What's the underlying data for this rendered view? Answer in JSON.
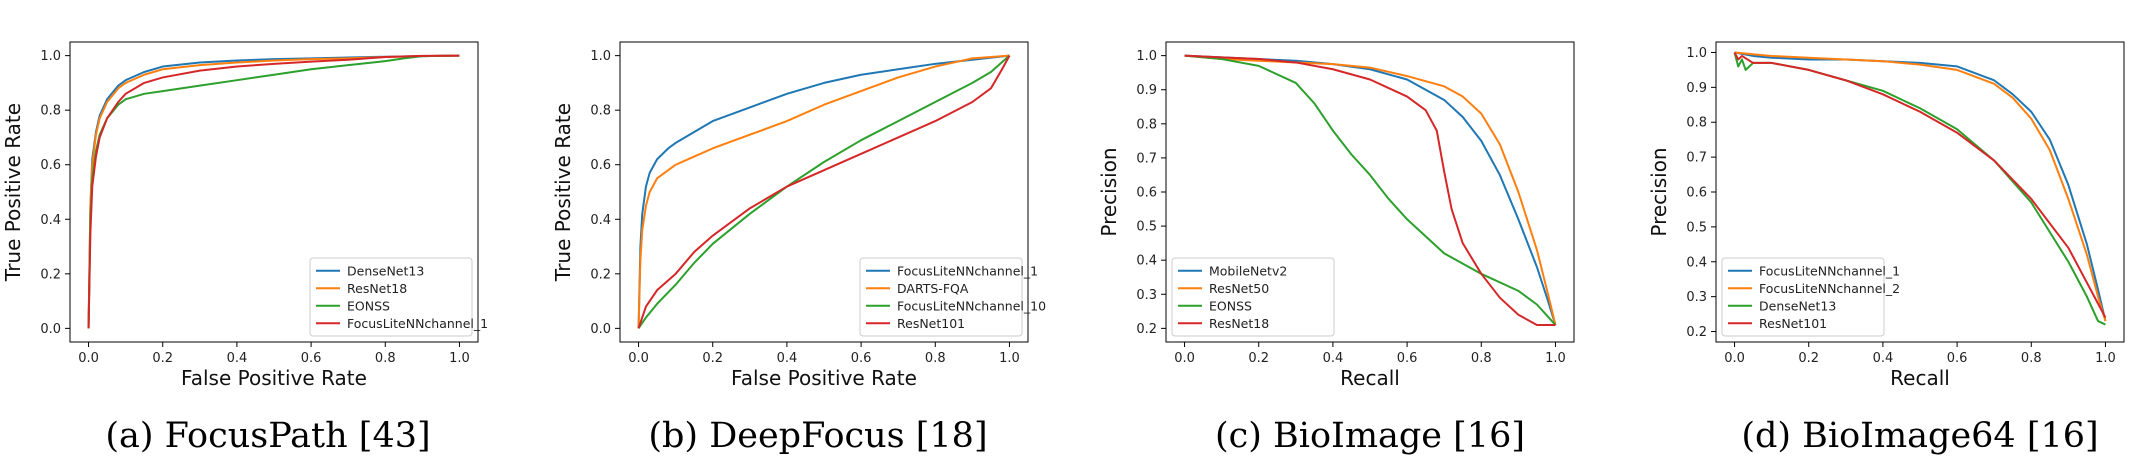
{
  "chart_data": [
    {
      "type": "line",
      "caption": "(a) FocusPath [43]",
      "xlabel": "False Positive Rate",
      "ylabel": "True Positive Rate",
      "xlim": [
        -0.05,
        1.05
      ],
      "ylim": [
        -0.05,
        1.05
      ],
      "xticks": [
        0.0,
        0.2,
        0.4,
        0.6,
        0.8,
        1.0
      ],
      "yticks": [
        0.0,
        0.2,
        0.4,
        0.6,
        0.8,
        1.0
      ],
      "grid": false,
      "legend_position": "lower-right",
      "series": [
        {
          "name": "DenseNet13",
          "color": "#1f77b4",
          "x": [
            0,
            0.005,
            0.01,
            0.02,
            0.03,
            0.05,
            0.08,
            0.1,
            0.15,
            0.2,
            0.3,
            0.4,
            0.5,
            0.6,
            0.7,
            0.8,
            0.9,
            1.0
          ],
          "y": [
            0,
            0.45,
            0.62,
            0.72,
            0.78,
            0.84,
            0.89,
            0.91,
            0.94,
            0.96,
            0.975,
            0.982,
            0.987,
            0.99,
            0.993,
            0.996,
            0.998,
            1.0
          ]
        },
        {
          "name": "ResNet18",
          "color": "#ff7f0e",
          "x": [
            0,
            0.005,
            0.01,
            0.02,
            0.03,
            0.05,
            0.08,
            0.1,
            0.15,
            0.2,
            0.3,
            0.4,
            0.5,
            0.6,
            0.7,
            0.8,
            0.9,
            1.0
          ],
          "y": [
            0,
            0.45,
            0.6,
            0.71,
            0.77,
            0.83,
            0.88,
            0.9,
            0.93,
            0.95,
            0.965,
            0.975,
            0.982,
            0.987,
            0.99,
            0.995,
            0.998,
            1.0
          ]
        },
        {
          "name": "EONSS",
          "color": "#2ca02c",
          "x": [
            0,
            0.005,
            0.01,
            0.02,
            0.03,
            0.05,
            0.08,
            0.1,
            0.15,
            0.2,
            0.3,
            0.4,
            0.5,
            0.6,
            0.7,
            0.8,
            0.85,
            0.9,
            1.0
          ],
          "y": [
            0,
            0.4,
            0.55,
            0.65,
            0.71,
            0.77,
            0.82,
            0.84,
            0.86,
            0.87,
            0.89,
            0.91,
            0.93,
            0.95,
            0.965,
            0.98,
            0.99,
            0.998,
            1.0
          ]
        },
        {
          "name": "FocusLiteNNchannel_1",
          "color": "#d62728",
          "x": [
            0,
            0.005,
            0.01,
            0.02,
            0.03,
            0.05,
            0.08,
            0.1,
            0.15,
            0.2,
            0.3,
            0.4,
            0.5,
            0.6,
            0.7,
            0.8,
            0.9,
            1.0
          ],
          "y": [
            0,
            0.35,
            0.52,
            0.63,
            0.7,
            0.77,
            0.83,
            0.86,
            0.9,
            0.92,
            0.945,
            0.96,
            0.97,
            0.978,
            0.985,
            0.995,
            0.999,
            1.0
          ]
        }
      ]
    },
    {
      "type": "line",
      "caption": "(b) DeepFocus [18]",
      "xlabel": "False Positive Rate",
      "ylabel": "True Positive Rate",
      "xlim": [
        -0.05,
        1.05
      ],
      "ylim": [
        -0.05,
        1.05
      ],
      "xticks": [
        0.0,
        0.2,
        0.4,
        0.6,
        0.8,
        1.0
      ],
      "yticks": [
        0.0,
        0.2,
        0.4,
        0.6,
        0.8,
        1.0
      ],
      "grid": false,
      "legend_position": "lower-right",
      "series": [
        {
          "name": "FocusLiteNNchannel_1",
          "color": "#1f77b4",
          "x": [
            0,
            0.005,
            0.01,
            0.02,
            0.03,
            0.05,
            0.08,
            0.1,
            0.15,
            0.2,
            0.3,
            0.4,
            0.5,
            0.6,
            0.7,
            0.8,
            0.9,
            1.0
          ],
          "y": [
            0,
            0.3,
            0.42,
            0.52,
            0.57,
            0.62,
            0.66,
            0.68,
            0.72,
            0.76,
            0.81,
            0.86,
            0.9,
            0.93,
            0.95,
            0.97,
            0.985,
            1.0
          ]
        },
        {
          "name": "DARTS-FQA",
          "color": "#ff7f0e",
          "x": [
            0,
            0.005,
            0.01,
            0.02,
            0.03,
            0.05,
            0.08,
            0.1,
            0.15,
            0.2,
            0.3,
            0.4,
            0.5,
            0.6,
            0.7,
            0.8,
            0.9,
            1.0
          ],
          "y": [
            0,
            0.25,
            0.36,
            0.45,
            0.5,
            0.55,
            0.58,
            0.6,
            0.63,
            0.66,
            0.71,
            0.76,
            0.82,
            0.87,
            0.92,
            0.96,
            0.99,
            1.0
          ]
        },
        {
          "name": "FocusLiteNNchannel_10",
          "color": "#2ca02c",
          "x": [
            0,
            0.02,
            0.05,
            0.1,
            0.15,
            0.2,
            0.3,
            0.4,
            0.5,
            0.6,
            0.7,
            0.8,
            0.9,
            0.95,
            1.0
          ],
          "y": [
            0,
            0.04,
            0.09,
            0.16,
            0.24,
            0.31,
            0.42,
            0.52,
            0.61,
            0.69,
            0.76,
            0.83,
            0.9,
            0.94,
            1.0
          ]
        },
        {
          "name": "ResNet101",
          "color": "#d62728",
          "x": [
            0,
            0.02,
            0.05,
            0.1,
            0.15,
            0.2,
            0.3,
            0.4,
            0.5,
            0.6,
            0.7,
            0.8,
            0.9,
            0.95,
            0.98,
            1.0
          ],
          "y": [
            0,
            0.08,
            0.14,
            0.2,
            0.28,
            0.34,
            0.44,
            0.52,
            0.58,
            0.64,
            0.7,
            0.76,
            0.83,
            0.88,
            0.95,
            1.0
          ]
        }
      ]
    },
    {
      "type": "line",
      "caption": "(c) BioImage [16]",
      "xlabel": "Recall",
      "ylabel": "Precision",
      "xlim": [
        -0.05,
        1.05
      ],
      "ylim": [
        0.16,
        1.04
      ],
      "xticks": [
        0.0,
        0.2,
        0.4,
        0.6,
        0.8,
        1.0
      ],
      "yticks": [
        0.2,
        0.3,
        0.4,
        0.5,
        0.6,
        0.7,
        0.8,
        0.9,
        1.0
      ],
      "grid": false,
      "legend_position": "lower-left",
      "series": [
        {
          "name": "MobileNetv2",
          "color": "#1f77b4",
          "x": [
            0,
            0.1,
            0.2,
            0.3,
            0.4,
            0.5,
            0.6,
            0.7,
            0.75,
            0.8,
            0.85,
            0.9,
            0.95,
            0.98,
            1.0
          ],
          "y": [
            1.0,
            0.995,
            0.99,
            0.985,
            0.975,
            0.96,
            0.93,
            0.87,
            0.82,
            0.75,
            0.65,
            0.52,
            0.38,
            0.28,
            0.21
          ]
        },
        {
          "name": "ResNet50",
          "color": "#ff7f0e",
          "x": [
            0,
            0.1,
            0.2,
            0.3,
            0.4,
            0.5,
            0.6,
            0.7,
            0.75,
            0.8,
            0.85,
            0.9,
            0.95,
            0.98,
            1.0
          ],
          "y": [
            1.0,
            0.99,
            0.985,
            0.98,
            0.975,
            0.965,
            0.94,
            0.91,
            0.88,
            0.83,
            0.74,
            0.6,
            0.43,
            0.3,
            0.21
          ]
        },
        {
          "name": "EONSS",
          "color": "#2ca02c",
          "x": [
            0,
            0.1,
            0.2,
            0.3,
            0.35,
            0.4,
            0.45,
            0.5,
            0.55,
            0.6,
            0.7,
            0.8,
            0.9,
            0.95,
            1.0
          ],
          "y": [
            1.0,
            0.99,
            0.97,
            0.92,
            0.86,
            0.78,
            0.71,
            0.65,
            0.58,
            0.52,
            0.42,
            0.36,
            0.31,
            0.27,
            0.21
          ]
        },
        {
          "name": "ResNet18",
          "color": "#d62728",
          "x": [
            0,
            0.1,
            0.2,
            0.3,
            0.4,
            0.5,
            0.6,
            0.65,
            0.68,
            0.7,
            0.72,
            0.75,
            0.8,
            0.85,
            0.9,
            0.95,
            1.0
          ],
          "y": [
            1.0,
            0.995,
            0.99,
            0.98,
            0.96,
            0.93,
            0.88,
            0.84,
            0.78,
            0.66,
            0.55,
            0.45,
            0.36,
            0.29,
            0.24,
            0.21,
            0.21
          ]
        }
      ]
    },
    {
      "type": "line",
      "caption": "(d) BioImage64 [16]",
      "xlabel": "Recall",
      "ylabel": "Precision",
      "xlim": [
        -0.05,
        1.05
      ],
      "ylim": [
        0.17,
        1.03
      ],
      "xticks": [
        0.0,
        0.2,
        0.4,
        0.6,
        0.8,
        1.0
      ],
      "yticks": [
        0.2,
        0.3,
        0.4,
        0.5,
        0.6,
        0.7,
        0.8,
        0.9,
        1.0
      ],
      "grid": false,
      "legend_position": "lower-left",
      "series": [
        {
          "name": "FocusLiteNNchannel_1",
          "color": "#1f77b4",
          "x": [
            0,
            0.05,
            0.1,
            0.2,
            0.3,
            0.4,
            0.5,
            0.6,
            0.7,
            0.75,
            0.8,
            0.85,
            0.9,
            0.95,
            0.98,
            1.0
          ],
          "y": [
            1.0,
            0.99,
            0.985,
            0.98,
            0.98,
            0.975,
            0.97,
            0.96,
            0.92,
            0.88,
            0.83,
            0.75,
            0.62,
            0.45,
            0.32,
            0.23
          ]
        },
        {
          "name": "FocusLiteNNchannel_2",
          "color": "#ff7f0e",
          "x": [
            0,
            0.05,
            0.1,
            0.2,
            0.3,
            0.4,
            0.5,
            0.6,
            0.7,
            0.75,
            0.8,
            0.85,
            0.9,
            0.95,
            0.98,
            1.0
          ],
          "y": [
            1.0,
            0.995,
            0.99,
            0.985,
            0.98,
            0.975,
            0.965,
            0.95,
            0.91,
            0.87,
            0.81,
            0.72,
            0.58,
            0.42,
            0.3,
            0.23
          ]
        },
        {
          "name": "DenseNet13",
          "color": "#2ca02c",
          "x": [
            0,
            0.01,
            0.02,
            0.03,
            0.05,
            0.1,
            0.2,
            0.3,
            0.4,
            0.5,
            0.6,
            0.7,
            0.8,
            0.9,
            0.95,
            0.98,
            1.0
          ],
          "y": [
            1.0,
            0.96,
            0.98,
            0.95,
            0.97,
            0.97,
            0.95,
            0.92,
            0.89,
            0.84,
            0.78,
            0.69,
            0.57,
            0.4,
            0.3,
            0.23,
            0.22
          ]
        },
        {
          "name": "ResNet101",
          "color": "#d62728",
          "x": [
            0,
            0.01,
            0.02,
            0.05,
            0.1,
            0.2,
            0.3,
            0.4,
            0.5,
            0.6,
            0.7,
            0.8,
            0.9,
            0.95,
            0.98,
            1.0
          ],
          "y": [
            1.0,
            0.98,
            0.99,
            0.97,
            0.97,
            0.95,
            0.92,
            0.88,
            0.83,
            0.77,
            0.69,
            0.58,
            0.44,
            0.34,
            0.28,
            0.24
          ]
        }
      ]
    }
  ]
}
